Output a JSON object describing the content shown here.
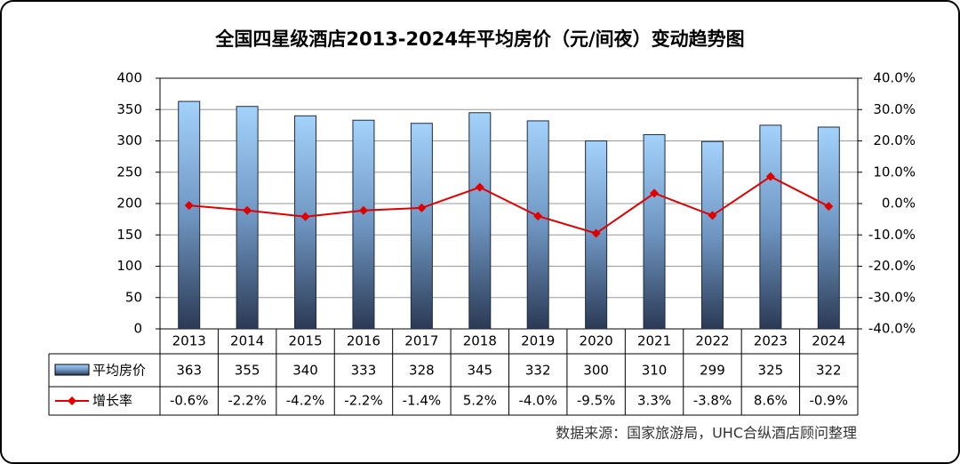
{
  "chart_data": {
    "type": "bar-line",
    "title": "全国四星级酒店2013-2024年平均房价（元/间夜）变动趋势图",
    "categories": [
      "2013",
      "2014",
      "2015",
      "2016",
      "2017",
      "2018",
      "2019",
      "2020",
      "2021",
      "2022",
      "2023",
      "2024"
    ],
    "series": [
      {
        "name": "平均房价",
        "color": "#8fc3f0",
        "values": [
          363,
          355,
          340,
          333,
          328,
          345,
          332,
          300,
          310,
          299,
          325,
          322
        ]
      },
      {
        "name": "增长率",
        "color": "#e00000",
        "axis": "y2",
        "values": [
          -0.6,
          -2.2,
          -4.2,
          -2.2,
          -1.4,
          5.2,
          -4.0,
          -9.5,
          3.3,
          -3.8,
          8.6,
          -0.9
        ],
        "value_labels": [
          "-0.6%",
          "-2.2%",
          "-4.2%",
          "-2.2%",
          "-1.4%",
          "5.2%",
          "-4.0%",
          "-9.5%",
          "3.3%",
          "-3.8%",
          "8.6%",
          "-0.9%"
        ]
      }
    ],
    "ylim": [
      0,
      400
    ],
    "yticks": [
      0,
      50,
      100,
      150,
      200,
      250,
      300,
      350,
      400
    ],
    "y2lim": [
      -40,
      40
    ],
    "y2ticks": [
      {
        "value": -40,
        "label": "-40.0%"
      },
      {
        "value": -30,
        "label": "-30.0%"
      },
      {
        "value": -20,
        "label": "-20.0%"
      },
      {
        "value": -10,
        "label": "-10.0%"
      },
      {
        "value": 0,
        "label": "0.0%"
      },
      {
        "value": 10,
        "label": "10.0%"
      },
      {
        "value": 20,
        "label": "20.0%"
      },
      {
        "value": 30,
        "label": "30.0%"
      },
      {
        "value": 40,
        "label": "40.0%"
      }
    ],
    "grid": true,
    "source": "数据来源：国家旅游局，UHC合纵酒店顾问整理"
  }
}
